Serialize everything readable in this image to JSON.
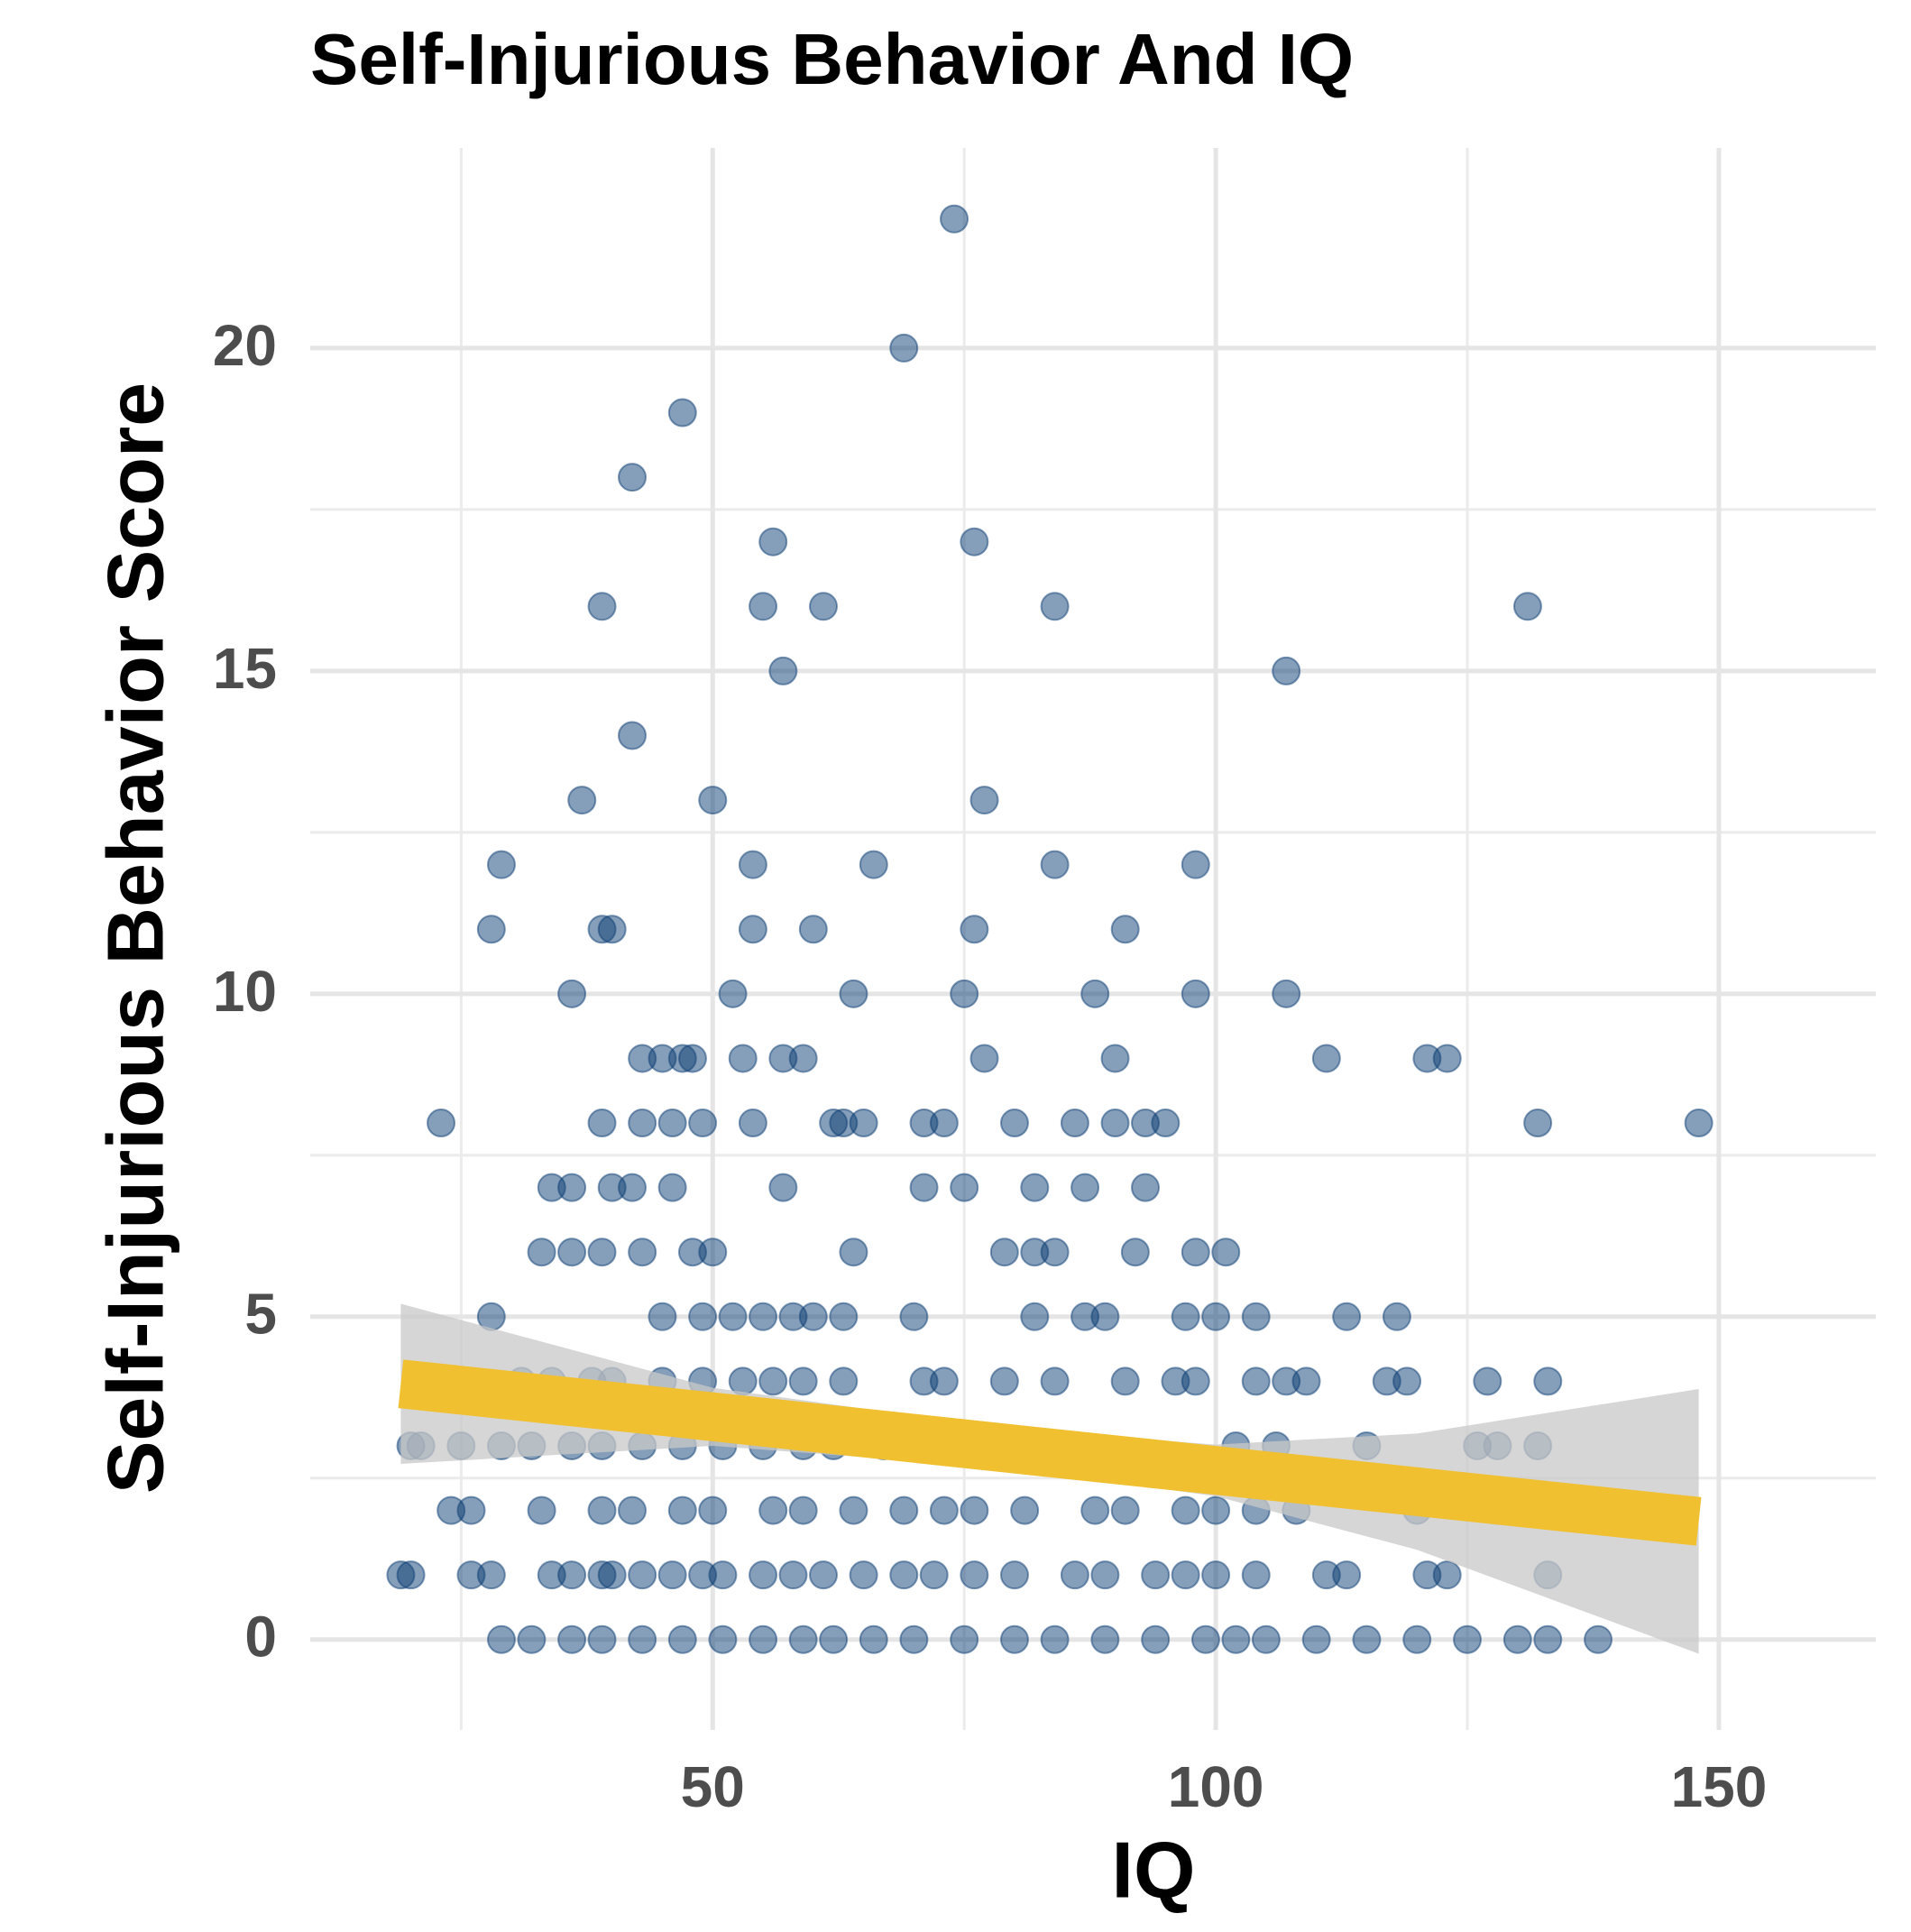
{
  "chart_data": {
    "type": "scatter",
    "title": "Self-Injurious Behavior And IQ",
    "x_label": "IQ",
    "y_label": "Self-Injurious Behavior Score",
    "xlim": [
      10,
      165.6
    ],
    "ylim": [
      -1.4,
      23.1
    ],
    "xticks": [
      50,
      100,
      150
    ],
    "yticks": [
      0,
      5,
      10,
      15,
      20
    ],
    "x_minor_ticks": [
      25,
      75,
      125
    ],
    "y_minor_ticks": [
      2.5,
      7.5,
      12.5,
      17.5
    ],
    "grid": true,
    "series": [
      {
        "color": "#0b3d73",
        "points": [
          [
            74,
            22
          ],
          [
            69,
            20
          ],
          [
            47,
            19
          ],
          [
            42,
            18
          ],
          [
            56,
            17
          ],
          [
            76,
            17
          ],
          [
            39,
            16
          ],
          [
            55,
            16
          ],
          [
            61,
            16
          ],
          [
            84,
            16
          ],
          [
            131,
            16
          ],
          [
            57,
            15
          ],
          [
            107,
            15
          ],
          [
            42,
            14
          ],
          [
            37,
            13
          ],
          [
            50,
            13
          ],
          [
            77,
            13
          ],
          [
            29,
            12
          ],
          [
            54,
            12
          ],
          [
            66,
            12
          ],
          [
            84,
            12
          ],
          [
            98,
            12
          ],
          [
            28,
            11
          ],
          [
            39,
            11
          ],
          [
            40,
            11
          ],
          [
            54,
            11
          ],
          [
            60,
            11
          ],
          [
            76,
            11
          ],
          [
            91,
            11
          ],
          [
            36,
            10
          ],
          [
            52,
            10
          ],
          [
            64,
            10
          ],
          [
            75,
            10
          ],
          [
            88,
            10
          ],
          [
            98,
            10
          ],
          [
            107,
            10
          ],
          [
            43,
            9
          ],
          [
            45,
            9
          ],
          [
            47,
            9
          ],
          [
            48,
            9
          ],
          [
            53,
            9
          ],
          [
            57,
            9
          ],
          [
            59,
            9
          ],
          [
            77,
            9
          ],
          [
            90,
            9
          ],
          [
            111,
            9
          ],
          [
            121,
            9
          ],
          [
            123,
            9
          ],
          [
            23,
            8
          ],
          [
            39,
            8
          ],
          [
            43,
            8
          ],
          [
            46,
            8
          ],
          [
            49,
            8
          ],
          [
            54,
            8
          ],
          [
            62,
            8
          ],
          [
            63,
            8
          ],
          [
            65,
            8
          ],
          [
            71,
            8
          ],
          [
            73,
            8
          ],
          [
            80,
            8
          ],
          [
            86,
            8
          ],
          [
            90,
            8
          ],
          [
            93,
            8
          ],
          [
            95,
            8
          ],
          [
            132,
            8
          ],
          [
            148,
            8
          ],
          [
            34,
            7
          ],
          [
            36,
            7
          ],
          [
            40,
            7
          ],
          [
            42,
            7
          ],
          [
            46,
            7
          ],
          [
            57,
            7
          ],
          [
            71,
            7
          ],
          [
            75,
            7
          ],
          [
            82,
            7
          ],
          [
            87,
            7
          ],
          [
            93,
            7
          ],
          [
            33,
            6
          ],
          [
            36,
            6
          ],
          [
            39,
            6
          ],
          [
            43,
            6
          ],
          [
            48,
            6
          ],
          [
            50,
            6
          ],
          [
            64,
            6
          ],
          [
            79,
            6
          ],
          [
            82,
            6
          ],
          [
            84,
            6
          ],
          [
            92,
            6
          ],
          [
            98,
            6
          ],
          [
            101,
            6
          ],
          [
            28,
            5
          ],
          [
            45,
            5
          ],
          [
            49,
            5
          ],
          [
            52,
            5
          ],
          [
            55,
            5
          ],
          [
            58,
            5
          ],
          [
            60,
            5
          ],
          [
            63,
            5
          ],
          [
            70,
            5
          ],
          [
            82,
            5
          ],
          [
            87,
            5
          ],
          [
            89,
            5
          ],
          [
            97,
            5
          ],
          [
            100,
            5
          ],
          [
            104,
            5
          ],
          [
            113,
            5
          ],
          [
            118,
            5
          ],
          [
            31,
            4
          ],
          [
            34,
            4
          ],
          [
            38,
            4
          ],
          [
            40,
            4
          ],
          [
            45,
            4
          ],
          [
            49,
            4
          ],
          [
            53,
            4
          ],
          [
            56,
            4
          ],
          [
            59,
            4
          ],
          [
            63,
            4
          ],
          [
            71,
            4
          ],
          [
            73,
            4
          ],
          [
            79,
            4
          ],
          [
            84,
            4
          ],
          [
            91,
            4
          ],
          [
            96,
            4
          ],
          [
            98,
            4
          ],
          [
            104,
            4
          ],
          [
            107,
            4
          ],
          [
            109,
            4
          ],
          [
            117,
            4
          ],
          [
            119,
            4
          ],
          [
            127,
            4
          ],
          [
            133,
            4
          ],
          [
            20,
            3
          ],
          [
            21,
            3
          ],
          [
            25,
            3
          ],
          [
            29,
            3
          ],
          [
            32,
            3
          ],
          [
            36,
            3
          ],
          [
            39,
            3
          ],
          [
            43,
            3
          ],
          [
            47,
            3
          ],
          [
            51,
            3
          ],
          [
            55,
            3
          ],
          [
            59,
            3
          ],
          [
            62,
            3
          ],
          [
            67,
            3
          ],
          [
            72,
            3
          ],
          [
            102,
            3
          ],
          [
            106,
            3
          ],
          [
            115,
            3
          ],
          [
            126,
            3
          ],
          [
            128,
            3
          ],
          [
            132,
            3
          ],
          [
            24,
            2
          ],
          [
            26,
            2
          ],
          [
            33,
            2
          ],
          [
            39,
            2
          ],
          [
            42,
            2
          ],
          [
            47,
            2
          ],
          [
            50,
            2
          ],
          [
            56,
            2
          ],
          [
            59,
            2
          ],
          [
            64,
            2
          ],
          [
            69,
            2
          ],
          [
            73,
            2
          ],
          [
            76,
            2
          ],
          [
            81,
            2
          ],
          [
            88,
            2
          ],
          [
            91,
            2
          ],
          [
            97,
            2
          ],
          [
            100,
            2
          ],
          [
            104,
            2
          ],
          [
            108,
            2
          ],
          [
            120,
            2
          ],
          [
            128,
            2
          ],
          [
            19,
            1
          ],
          [
            20,
            1
          ],
          [
            26,
            1
          ],
          [
            28,
            1
          ],
          [
            34,
            1
          ],
          [
            36,
            1
          ],
          [
            39,
            1
          ],
          [
            40,
            1
          ],
          [
            43,
            1
          ],
          [
            46,
            1
          ],
          [
            49,
            1
          ],
          [
            51,
            1
          ],
          [
            55,
            1
          ],
          [
            58,
            1
          ],
          [
            61,
            1
          ],
          [
            65,
            1
          ],
          [
            69,
            1
          ],
          [
            72,
            1
          ],
          [
            76,
            1
          ],
          [
            80,
            1
          ],
          [
            86,
            1
          ],
          [
            89,
            1
          ],
          [
            94,
            1
          ],
          [
            97,
            1
          ],
          [
            100,
            1
          ],
          [
            104,
            1
          ],
          [
            111,
            1
          ],
          [
            113,
            1
          ],
          [
            121,
            1
          ],
          [
            123,
            1
          ],
          [
            133,
            1
          ],
          [
            29,
            0
          ],
          [
            32,
            0
          ],
          [
            36,
            0
          ],
          [
            39,
            0
          ],
          [
            43,
            0
          ],
          [
            47,
            0
          ],
          [
            51,
            0
          ],
          [
            55,
            0
          ],
          [
            59,
            0
          ],
          [
            62,
            0
          ],
          [
            66,
            0
          ],
          [
            70,
            0
          ],
          [
            75,
            0
          ],
          [
            80,
            0
          ],
          [
            84,
            0
          ],
          [
            89,
            0
          ],
          [
            94,
            0
          ],
          [
            99,
            0
          ],
          [
            102,
            0
          ],
          [
            105,
            0
          ],
          [
            110,
            0
          ],
          [
            115,
            0
          ],
          [
            120,
            0
          ],
          [
            125,
            0
          ],
          [
            130,
            0
          ],
          [
            133,
            0
          ],
          [
            138,
            0
          ]
        ]
      }
    ],
    "fit": {
      "color": "#f0c030",
      "band_color": "#c8c8c8",
      "x": [
        19,
        50,
        80,
        100,
        120,
        148
      ],
      "y": [
        3.96,
        3.45,
        2.95,
        2.62,
        2.29,
        1.83
      ],
      "lower": [
        2.72,
        3.0,
        2.65,
        2.22,
        1.39,
        -0.22
      ],
      "upper": [
        5.2,
        3.9,
        3.25,
        3.02,
        3.19,
        3.88
      ]
    }
  }
}
